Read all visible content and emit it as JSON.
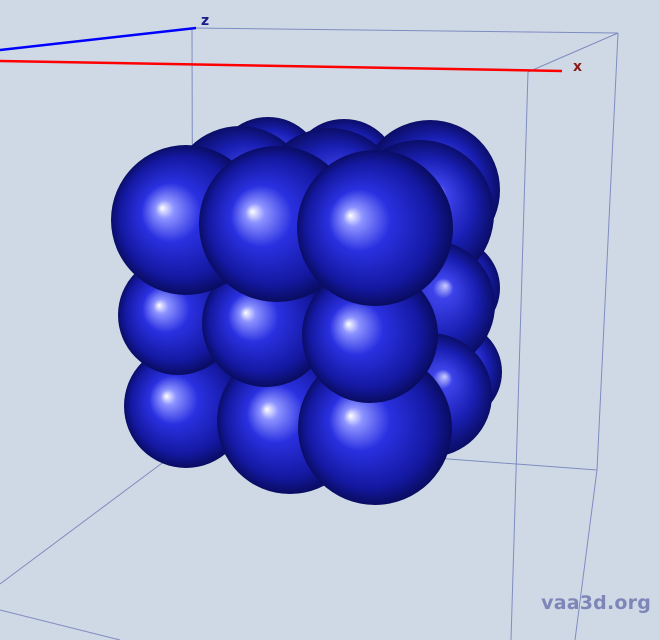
{
  "viewer": {
    "background_color": "#cfd9e6",
    "bounding_box_color": "#7f8cc0",
    "object_color": "#1c22c8",
    "object_shape": "3x3x3 cube of spheres"
  },
  "axes": {
    "x": {
      "label": "x",
      "color": "#ff0000"
    },
    "z": {
      "label": "z",
      "color": "#0000ff"
    }
  },
  "watermark": "vaa3d.org"
}
